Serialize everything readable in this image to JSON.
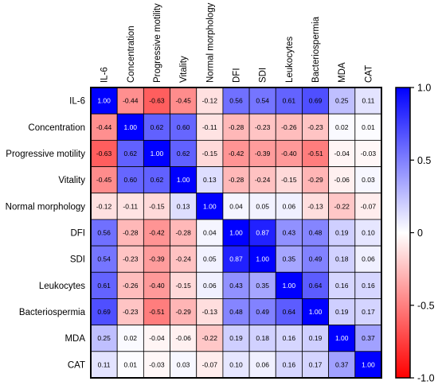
{
  "chart_data": {
    "type": "heatmap",
    "row_labels": [
      "IL-6",
      "Concentration",
      "Progressive motility",
      "Vitality",
      "Normal morphology",
      "DFI",
      "SDI",
      "Leukocytes",
      "Bacteriospermia",
      "MDA",
      "CAT"
    ],
    "col_labels": [
      "IL-6",
      "Concentration",
      "Progressive motility",
      "Vitality",
      "Normal morphology",
      "DFI",
      "SDI",
      "Leukocytes",
      "Bacteriospermia",
      "MDA",
      "CAT"
    ],
    "values": [
      [
        1.0,
        -0.44,
        -0.63,
        -0.45,
        -0.12,
        0.56,
        0.54,
        0.61,
        0.69,
        0.25,
        0.11
      ],
      [
        -0.44,
        1.0,
        0.62,
        0.6,
        -0.11,
        -0.28,
        -0.23,
        -0.26,
        -0.23,
        0.02,
        0.01
      ],
      [
        -0.63,
        0.62,
        1.0,
        0.62,
        -0.15,
        -0.42,
        -0.39,
        -0.4,
        -0.51,
        -0.04,
        -0.03
      ],
      [
        -0.45,
        0.6,
        0.62,
        1.0,
        0.13,
        -0.28,
        -0.24,
        -0.15,
        -0.29,
        -0.06,
        0.03
      ],
      [
        -0.12,
        -0.11,
        -0.15,
        0.13,
        1.0,
        0.04,
        0.05,
        0.06,
        -0.13,
        -0.22,
        -0.07
      ],
      [
        0.56,
        -0.28,
        -0.42,
        -0.28,
        0.04,
        1.0,
        0.87,
        0.43,
        0.48,
        0.19,
        0.1
      ],
      [
        0.54,
        -0.23,
        -0.39,
        -0.24,
        0.05,
        0.87,
        1.0,
        0.35,
        0.49,
        0.18,
        0.06
      ],
      [
        0.61,
        -0.26,
        -0.4,
        -0.15,
        0.06,
        0.43,
        0.35,
        1.0,
        0.64,
        0.16,
        0.16
      ],
      [
        0.69,
        -0.23,
        -0.51,
        -0.29,
        -0.13,
        0.48,
        0.49,
        0.64,
        1.0,
        0.19,
        0.17
      ],
      [
        0.25,
        0.02,
        -0.04,
        -0.06,
        -0.22,
        0.19,
        0.18,
        0.16,
        0.19,
        1.0,
        0.37
      ],
      [
        0.11,
        0.01,
        -0.03,
        0.03,
        -0.07,
        0.1,
        0.06,
        0.16,
        0.17,
        0.37,
        1.0
      ]
    ],
    "colorbar": {
      "min": -1.0,
      "max": 1.0,
      "ticks": [
        1.0,
        0.5,
        0,
        -0.5,
        -1.0
      ],
      "tick_labels": [
        "1.0",
        "0.5",
        "0",
        "-0.5",
        "-1.0"
      ],
      "low_color": "#ff0000",
      "mid_color": "#ffffff",
      "high_color": "#0000ff"
    }
  }
}
